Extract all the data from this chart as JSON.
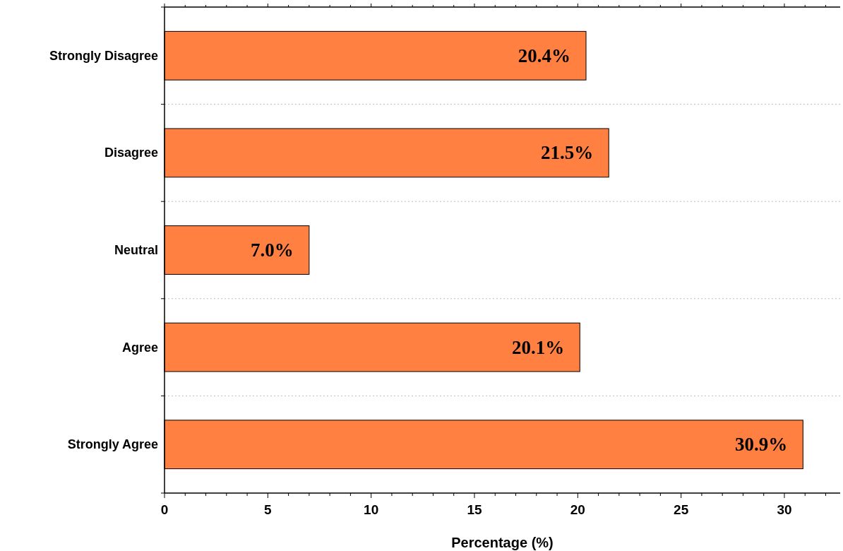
{
  "chart_data": {
    "type": "bar",
    "orientation": "horizontal",
    "xlabel": "Percentage (%)",
    "categories": [
      "Strongly Disagree",
      "Disagree",
      "Neutral",
      "Agree",
      "Strongly Agree"
    ],
    "values": [
      20.4,
      21.5,
      7.0,
      20.1,
      30.9
    ],
    "value_labels": [
      "20.4%",
      "21.5%",
      "7.0%",
      "20.1%",
      "30.9%"
    ],
    "color": "#ff8040",
    "xlim": [
      0,
      32.7
    ],
    "xticks": [
      0,
      {
        "value": 1,
        "label": null
      },
      {
        "value": 2,
        "label": null
      },
      {
        "value": 3,
        "label": null
      },
      {
        "value": 4,
        "label": null
      },
      5,
      {
        "value": 6,
        "label": null
      },
      {
        "value": 7,
        "label": null
      },
      {
        "value": 8,
        "label": null
      },
      {
        "value": 9,
        "label": null
      },
      10,
      {
        "value": 11,
        "label": null
      },
      {
        "value": 12,
        "label": null
      },
      {
        "value": 13,
        "label": null
      },
      {
        "value": 14,
        "label": null
      },
      15,
      {
        "value": 16,
        "label": null
      },
      {
        "value": 17,
        "label": null
      },
      {
        "value": 18,
        "label": null
      },
      {
        "value": 19,
        "label": null
      },
      20,
      {
        "value": 21,
        "label": null
      },
      {
        "value": 22,
        "label": null
      },
      {
        "value": 23,
        "label": null
      },
      {
        "value": 24,
        "label": null
      },
      25,
      {
        "value": 26,
        "label": null
      },
      {
        "value": 27,
        "label": null
      },
      {
        "value": 28,
        "label": null
      },
      {
        "value": 29,
        "label": null
      },
      30,
      {
        "value": 31,
        "label": null
      },
      {
        "value": 32,
        "label": null
      }
    ],
    "grid": "y"
  }
}
